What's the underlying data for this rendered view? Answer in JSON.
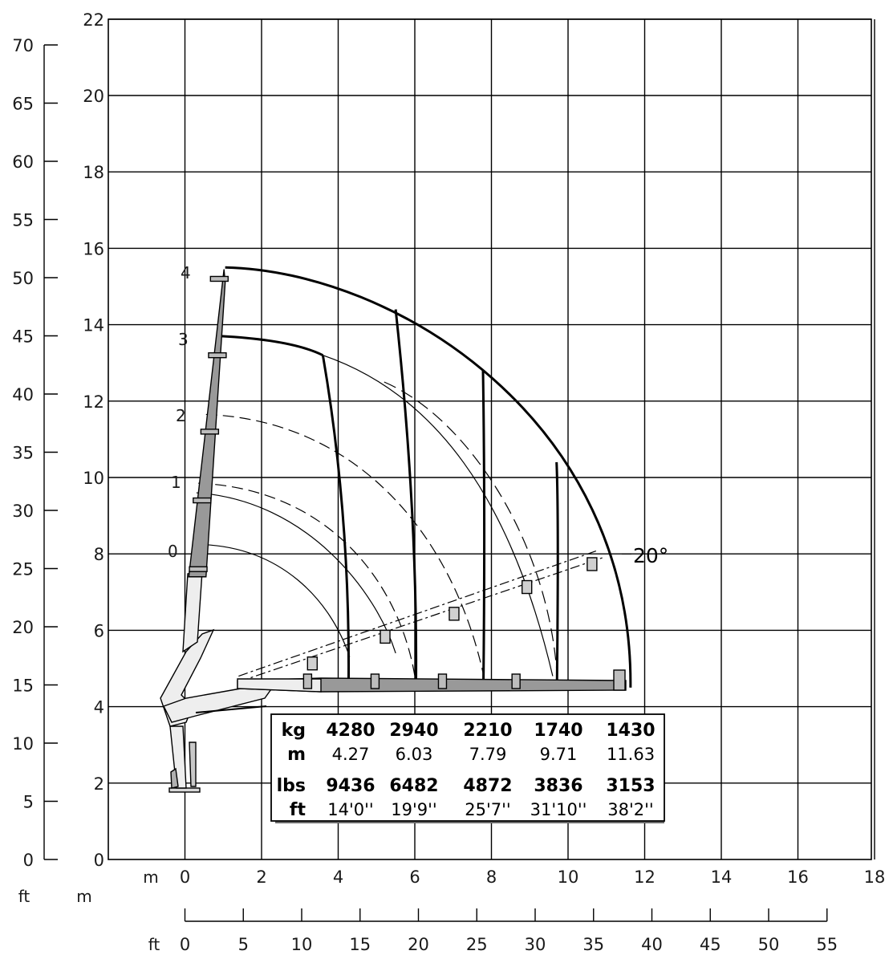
{
  "chart_data": {
    "type": "crane-load-diagram",
    "x_axis_m": {
      "unit_label": "m",
      "ticks": [
        0,
        2,
        4,
        6,
        8,
        10,
        12,
        14,
        16,
        18
      ],
      "range": [
        -2,
        18
      ]
    },
    "x_axis_ft": {
      "unit_label": "ft",
      "ticks": [
        0,
        5,
        10,
        15,
        20,
        25,
        30,
        35,
        40,
        45,
        50,
        55
      ]
    },
    "y_axis_m": {
      "unit_label": "m",
      "ticks": [
        0,
        2,
        4,
        6,
        8,
        10,
        12,
        14,
        16,
        18,
        20,
        22
      ],
      "range": [
        0,
        22
      ]
    },
    "y_axis_ft": {
      "unit_label": "ft",
      "ticks": [
        0,
        5,
        10,
        15,
        20,
        25,
        30,
        35,
        40,
        45,
        50,
        55,
        60,
        65,
        70
      ]
    },
    "boom_positions": [
      "0",
      "1",
      "2",
      "3",
      "4"
    ],
    "angle_label": "20°",
    "load_table": {
      "rows": [
        {
          "unit": "kg",
          "values": [
            "4280",
            "2940",
            "2210",
            "1740",
            "1430"
          ],
          "bold": true
        },
        {
          "unit": "m",
          "values": [
            "4.27",
            "6.03",
            "7.79",
            "9.71",
            "11.63"
          ],
          "bold": false
        },
        {
          "unit": "lbs",
          "values": [
            "9436",
            "6482",
            "4872",
            "3836",
            "3153"
          ],
          "bold": true
        },
        {
          "unit": "ft",
          "values": [
            "14'0''",
            "19'9''",
            "25'7''",
            "31'10''",
            "38'2''"
          ],
          "bold": false
        }
      ]
    },
    "reach_lines_m": [
      4.27,
      6.03,
      7.79,
      9.71,
      11.63
    ]
  }
}
